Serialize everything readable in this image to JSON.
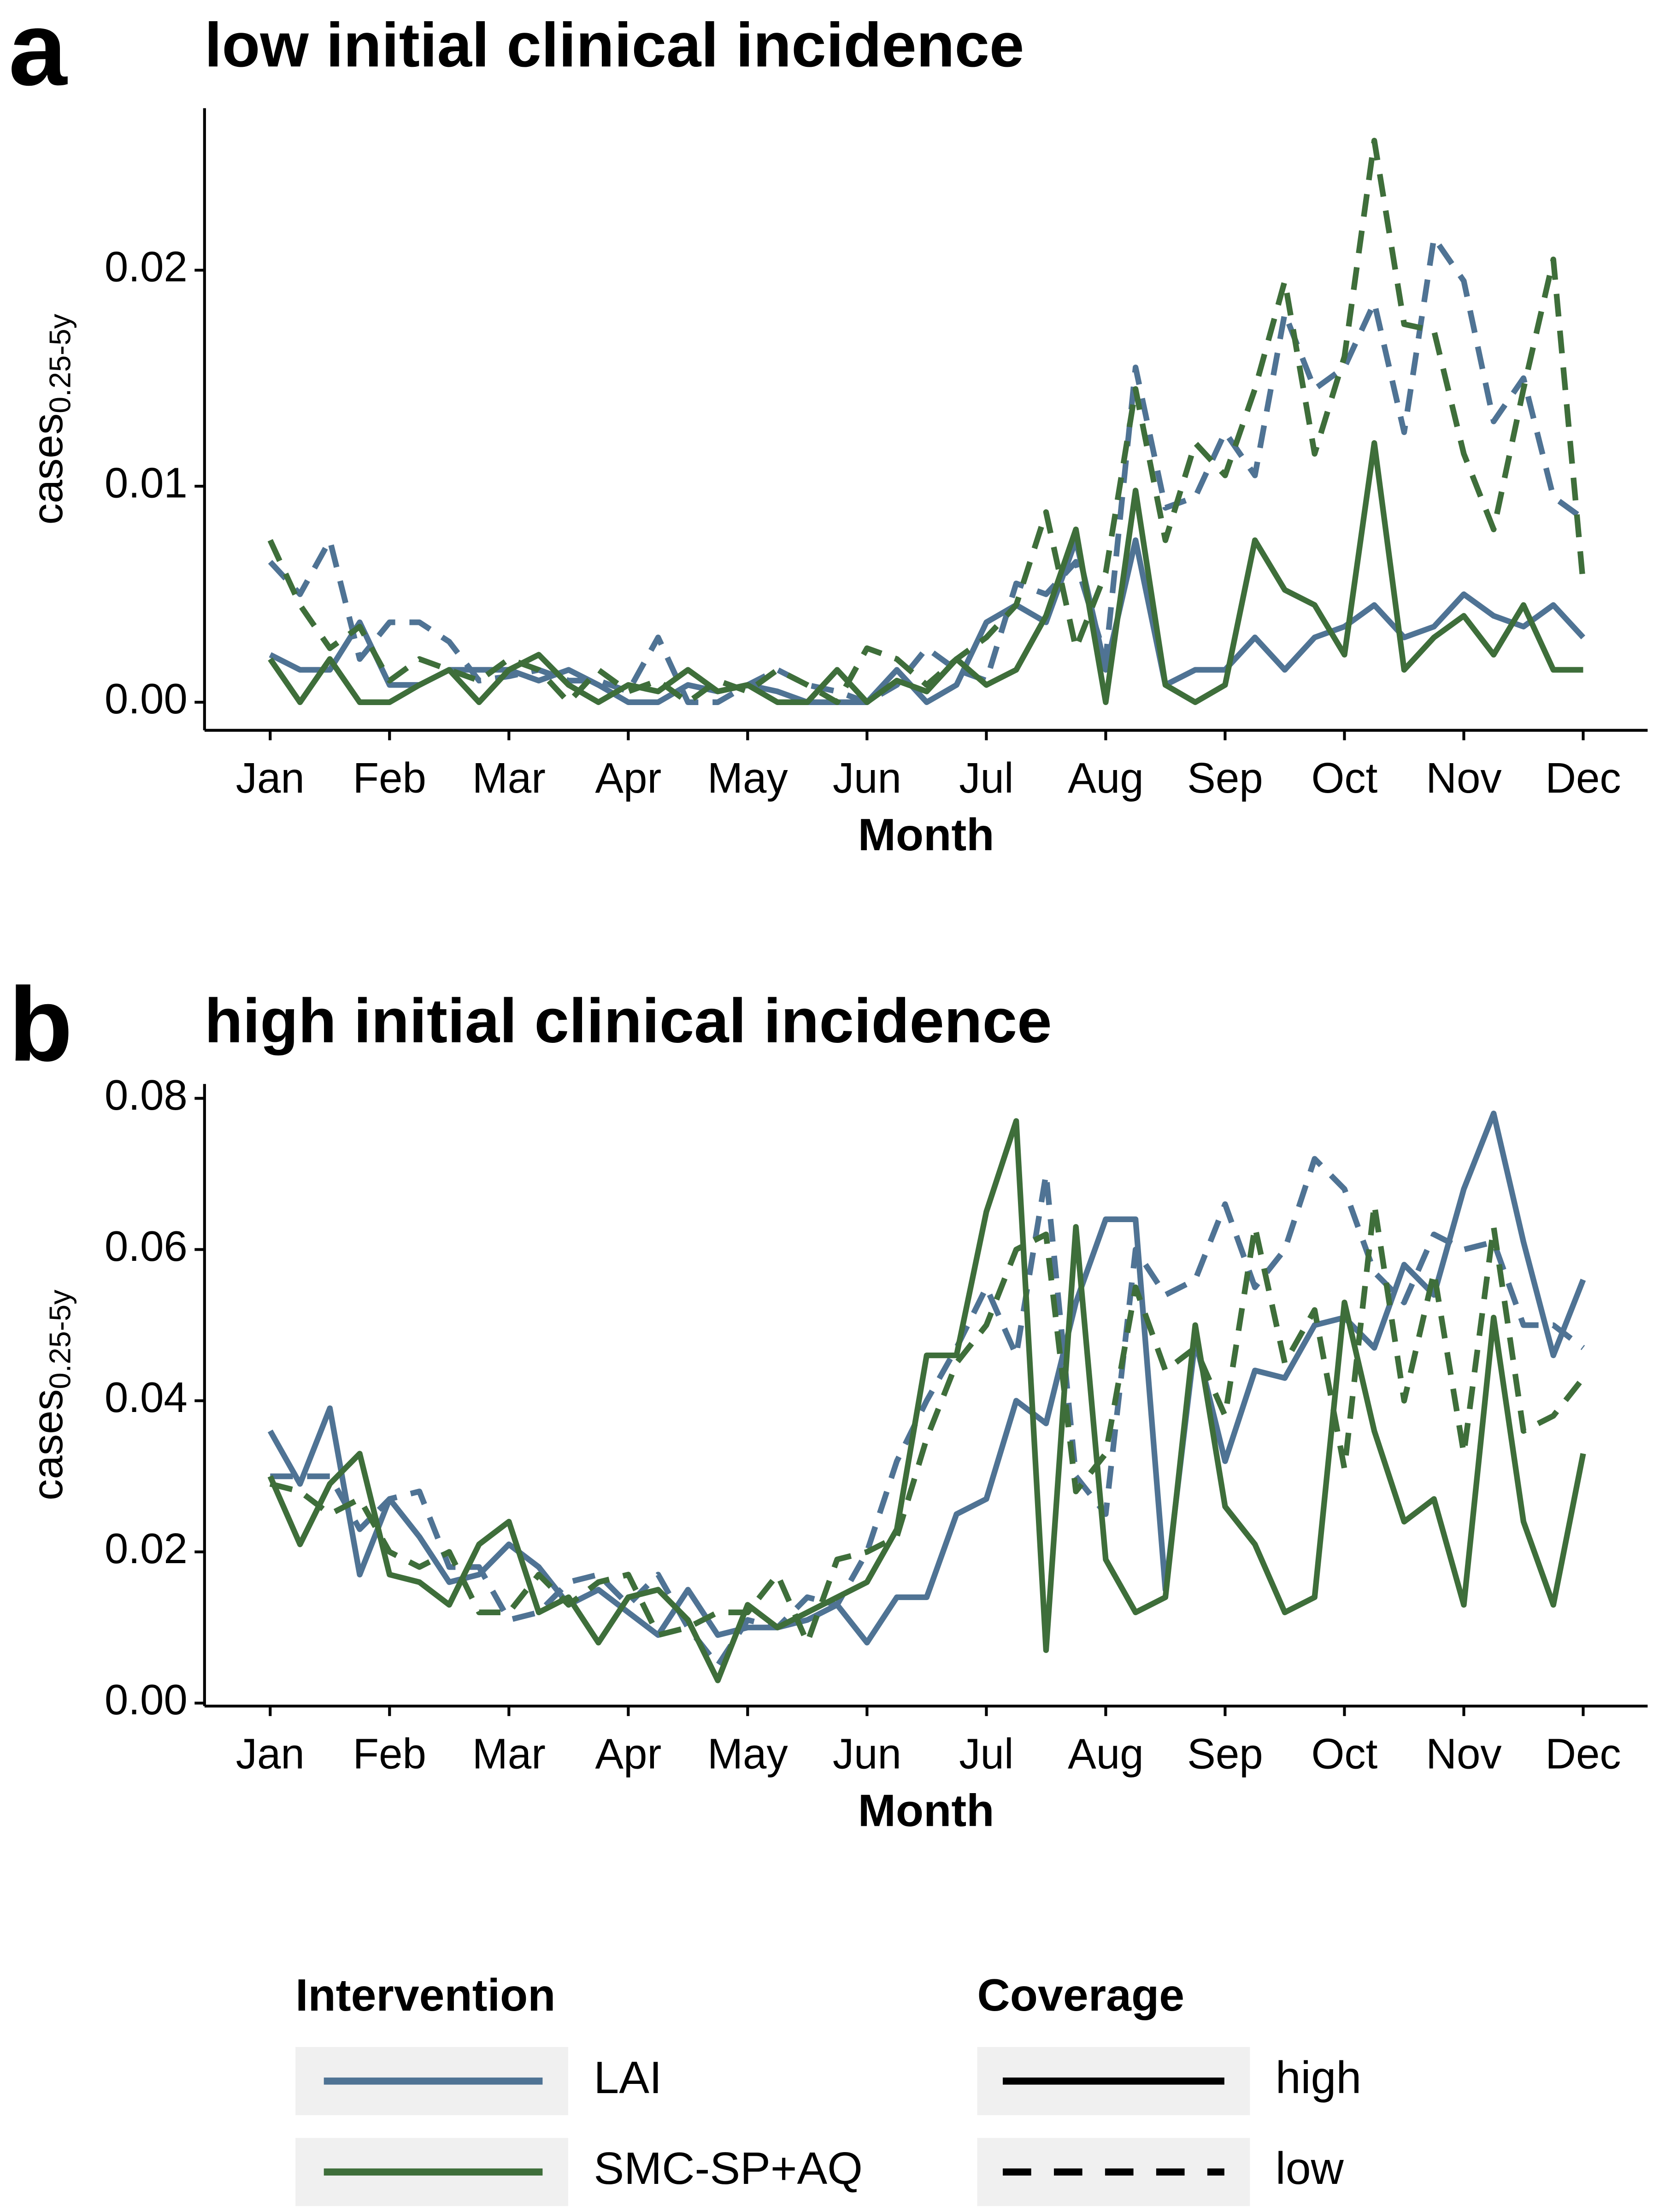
{
  "chart_data": [
    {
      "type": "line",
      "panel": "a",
      "title": "low initial clinical incidence",
      "xlabel": "Month",
      "ylabel": "cases",
      "ylabel_sub": "0.25-5y",
      "x": [
        0,
        0.25,
        0.5,
        0.75,
        1,
        1.25,
        1.5,
        1.75,
        2,
        2.25,
        2.5,
        2.75,
        3,
        3.25,
        3.5,
        3.75,
        4,
        4.25,
        4.5,
        4.75,
        5,
        5.25,
        5.5,
        5.75,
        6,
        6.25,
        6.5,
        6.75,
        7,
        7.25,
        7.5,
        7.75,
        8,
        8.25,
        8.5,
        8.75,
        9,
        9.25,
        9.5,
        9.75,
        10,
        10.25,
        10.5,
        10.75,
        11
      ],
      "xlim": [
        -0.55,
        11.54
      ],
      "xticks": [
        {
          "value": 0,
          "label": "Jan"
        },
        {
          "value": 1,
          "label": "Feb"
        },
        {
          "value": 2,
          "label": "Mar"
        },
        {
          "value": 3,
          "label": "Apr"
        },
        {
          "value": 4,
          "label": "May"
        },
        {
          "value": 5,
          "label": "Jun"
        },
        {
          "value": 6,
          "label": "Jul"
        },
        {
          "value": 7,
          "label": "Aug"
        },
        {
          "value": 8,
          "label": "Sep"
        },
        {
          "value": 9,
          "label": "Oct"
        },
        {
          "value": 10,
          "label": "Nov"
        },
        {
          "value": 11,
          "label": "Dec"
        }
      ],
      "ylim": [
        -0.0013,
        0.0275
      ],
      "yticks": [
        {
          "value": 0,
          "label": "0.00"
        },
        0.01,
        0.02
      ],
      "series": [
        {
          "name": "LAI",
          "coverage": "high",
          "color": "#4f7394",
          "dash": "solid",
          "values": [
            0.0022,
            0.0015,
            0.0015,
            0.0037,
            0.0008,
            0.0008,
            0.0015,
            0.0015,
            0.0015,
            0.001,
            0.0015,
            0.0008,
            0,
            0,
            0.0008,
            0.0005,
            0.0008,
            0.0005,
            0,
            0,
            0,
            0.0015,
            0,
            0.0008,
            0.0037,
            0.0045,
            0.0037,
            0.0075,
            0.0015,
            0.0075,
            0.0008,
            0.0015,
            0.0015,
            0.003,
            0.0015,
            0.003,
            0.0035,
            0.0045,
            0.003,
            0.0035,
            0.005,
            0.004,
            0.0035,
            0.0045,
            0.003
          ]
        },
        {
          "name": "LAI",
          "coverage": "low",
          "color": "#4f7394",
          "dash": "dashed",
          "values": [
            0.0065,
            0.005,
            0.0075,
            0.002,
            0.0037,
            0.0037,
            0.0028,
            0.001,
            0.0012,
            0.0015,
            0.001,
            0.001,
            0.0005,
            0.003,
            0,
            0,
            0.0008,
            0.0015,
            0.0008,
            0.0005,
            0,
            0.0008,
            0.0025,
            0.0015,
            0.001,
            0.0055,
            0.005,
            0.0065,
            0.002,
            0.0155,
            0.009,
            0.0095,
            0.0125,
            0.0105,
            0.018,
            0.0145,
            0.0155,
            0.0185,
            0.0125,
            0.0215,
            0.0195,
            0.013,
            0.015,
            0.0095,
            0.0085
          ]
        },
        {
          "name": "SMC-SP+AQ",
          "coverage": "high",
          "color": "#3e6e3a",
          "dash": "solid",
          "values": [
            0.002,
            0,
            0.002,
            0,
            0,
            0.0008,
            0.0015,
            0,
            0.0015,
            0.0022,
            0.0008,
            0,
            0.0008,
            0.0005,
            0.0015,
            0.0005,
            0.0008,
            0,
            0,
            0.0015,
            0,
            0.001,
            0.0005,
            0.002,
            0.0008,
            0.0015,
            0.004,
            0.008,
            0,
            0.0098,
            0.0008,
            0,
            0.0008,
            0.0075,
            0.0052,
            0.0045,
            0.0022,
            0.012,
            0.0015,
            0.003,
            0.004,
            0.0022,
            0.0045,
            0.0015,
            0.0015
          ]
        },
        {
          "name": "SMC-SP+AQ",
          "coverage": "low",
          "color": "#3e6e3a",
          "dash": "dashed",
          "values": [
            0.0075,
            0.0045,
            0.0025,
            0.0035,
            0.001,
            0.002,
            0.0015,
            0.001,
            0.002,
            0.0015,
            0,
            0.0015,
            0.0005,
            0.001,
            0,
            0.001,
            0.0005,
            0.0015,
            0.0008,
            0,
            0.0025,
            0.002,
            0.0008,
            0.002,
            0.003,
            0.0045,
            0.0088,
            0.0025,
            0.006,
            0.0145,
            0.0075,
            0.012,
            0.0105,
            0.0145,
            0.0195,
            0.0115,
            0.016,
            0.026,
            0.0175,
            0.0172,
            0.0115,
            0.008,
            0.0145,
            0.0205,
            0.0055
          ]
        }
      ]
    },
    {
      "type": "line",
      "panel": "b",
      "title": "high initial clinical incidence",
      "xlabel": "Month",
      "ylabel": "cases",
      "ylabel_sub": "0.25-5y",
      "x": [
        0,
        0.25,
        0.5,
        0.75,
        1,
        1.25,
        1.5,
        1.75,
        2,
        2.25,
        2.5,
        2.75,
        3,
        3.25,
        3.5,
        3.75,
        4,
        4.25,
        4.5,
        4.75,
        5,
        5.25,
        5.5,
        5.75,
        6,
        6.25,
        6.5,
        6.75,
        7,
        7.25,
        7.5,
        7.75,
        8,
        8.25,
        8.5,
        8.75,
        9,
        9.25,
        9.5,
        9.75,
        10,
        10.25,
        10.5,
        10.75,
        11
      ],
      "xlim": [
        -0.55,
        11.54
      ],
      "xticks": [
        {
          "value": 0,
          "label": "Jan"
        },
        {
          "value": 1,
          "label": "Feb"
        },
        {
          "value": 2,
          "label": "Mar"
        },
        {
          "value": 3,
          "label": "Apr"
        },
        {
          "value": 4,
          "label": "May"
        },
        {
          "value": 5,
          "label": "Jun"
        },
        {
          "value": 6,
          "label": "Jul"
        },
        {
          "value": 7,
          "label": "Aug"
        },
        {
          "value": 8,
          "label": "Sep"
        },
        {
          "value": 9,
          "label": "Oct"
        },
        {
          "value": 10,
          "label": "Nov"
        },
        {
          "value": 11,
          "label": "Dec"
        }
      ],
      "ylim": [
        -0.0004,
        0.0819
      ],
      "yticks": [
        {
          "value": 0,
          "label": "0.00"
        },
        0.02,
        0.04,
        0.06,
        0.08
      ],
      "series": [
        {
          "name": "LAI",
          "coverage": "high",
          "color": "#4f7394",
          "dash": "solid",
          "values": [
            0.036,
            0.029,
            0.039,
            0.017,
            0.027,
            0.022,
            0.016,
            0.017,
            0.021,
            0.018,
            0.013,
            0.015,
            0.012,
            0.009,
            0.015,
            0.009,
            0.01,
            0.01,
            0.011,
            0.013,
            0.008,
            0.014,
            0.014,
            0.025,
            0.027,
            0.04,
            0.037,
            0.053,
            0.064,
            0.064,
            0.015,
            0.048,
            0.032,
            0.044,
            0.043,
            0.05,
            0.051,
            0.047,
            0.058,
            0.054,
            0.068,
            0.078,
            0.061,
            0.046,
            0.056
          ]
        },
        {
          "name": "LAI",
          "coverage": "low",
          "color": "#4f7394",
          "dash": "dashed",
          "values": [
            0.03,
            0.03,
            0.03,
            0.023,
            0.027,
            0.028,
            0.018,
            0.018,
            0.011,
            0.012,
            0.016,
            0.017,
            0.013,
            0.017,
            0.01,
            0.005,
            0.011,
            0.01,
            0.014,
            0.013,
            0.02,
            0.032,
            0.04,
            0.047,
            0.055,
            0.046,
            0.07,
            0.03,
            0.025,
            0.06,
            0.054,
            0.056,
            0.066,
            0.055,
            0.06,
            0.072,
            0.068,
            0.057,
            0.053,
            0.062,
            0.06,
            0.061,
            0.05,
            0.05,
            0.047
          ]
        },
        {
          "name": "SMC-SP+AQ",
          "coverage": "high",
          "color": "#3e6e3a",
          "dash": "solid",
          "values": [
            0.03,
            0.021,
            0.029,
            0.033,
            0.017,
            0.016,
            0.013,
            0.021,
            0.024,
            0.012,
            0.014,
            0.008,
            0.014,
            0.015,
            0.011,
            0.003,
            0.013,
            0.01,
            0.012,
            0.014,
            0.016,
            0.023,
            0.046,
            0.046,
            0.065,
            0.077,
            0.007,
            0.063,
            0.019,
            0.012,
            0.014,
            0.05,
            0.026,
            0.021,
            0.012,
            0.014,
            0.053,
            0.036,
            0.024,
            0.027,
            0.013,
            0.051,
            0.024,
            0.013,
            0.033
          ]
        },
        {
          "name": "SMC-SP+AQ",
          "coverage": "low",
          "color": "#3e6e3a",
          "dash": "dashed",
          "values": [
            0.029,
            0.028,
            0.025,
            0.027,
            0.02,
            0.018,
            0.02,
            0.012,
            0.012,
            0.017,
            0.013,
            0.016,
            0.017,
            0.009,
            0.01,
            0.012,
            0.012,
            0.017,
            0.008,
            0.019,
            0.02,
            0.022,
            0.035,
            0.045,
            0.05,
            0.06,
            0.062,
            0.028,
            0.033,
            0.055,
            0.044,
            0.047,
            0.038,
            0.063,
            0.045,
            0.052,
            0.031,
            0.066,
            0.04,
            0.057,
            0.033,
            0.063,
            0.036,
            0.038,
            0.043
          ]
        }
      ]
    }
  ],
  "legend": {
    "intervention_title": "Intervention",
    "coverage_title": "Coverage",
    "interventions": [
      {
        "name": "LAI",
        "color": "#4f7394"
      },
      {
        "name": "SMC-SP+AQ",
        "color": "#3e6e3a"
      }
    ],
    "coverages": [
      {
        "name": "high",
        "dash": "solid"
      },
      {
        "name": "low",
        "dash": "dashed"
      }
    ]
  }
}
